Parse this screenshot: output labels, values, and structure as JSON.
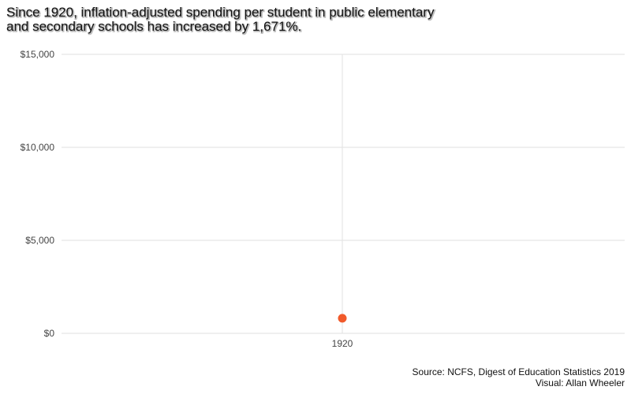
{
  "chart_data": {
    "type": "scatter",
    "title_lines": [
      "Since 1920, inflation-adjusted spending per student in public elementary",
      "and secondary schools has increased by 1,671%."
    ],
    "y_ticks": [
      {
        "value": 0,
        "label": "$0"
      },
      {
        "value": 5000,
        "label": "$5,000"
      },
      {
        "value": 10000,
        "label": "$10,000"
      },
      {
        "value": 15000,
        "label": "$15,000"
      }
    ],
    "ylim": [
      0,
      15000
    ],
    "x_ticks": [
      {
        "value": 1920,
        "label": "1920"
      }
    ],
    "points": [
      {
        "x": 1920,
        "y": 810
      }
    ],
    "point_color": "#f15a2b",
    "grid": true,
    "caption_lines": [
      "Source: NCFS, Digest of Education Statistics 2019",
      "Visual: Allan Wheeler"
    ]
  }
}
